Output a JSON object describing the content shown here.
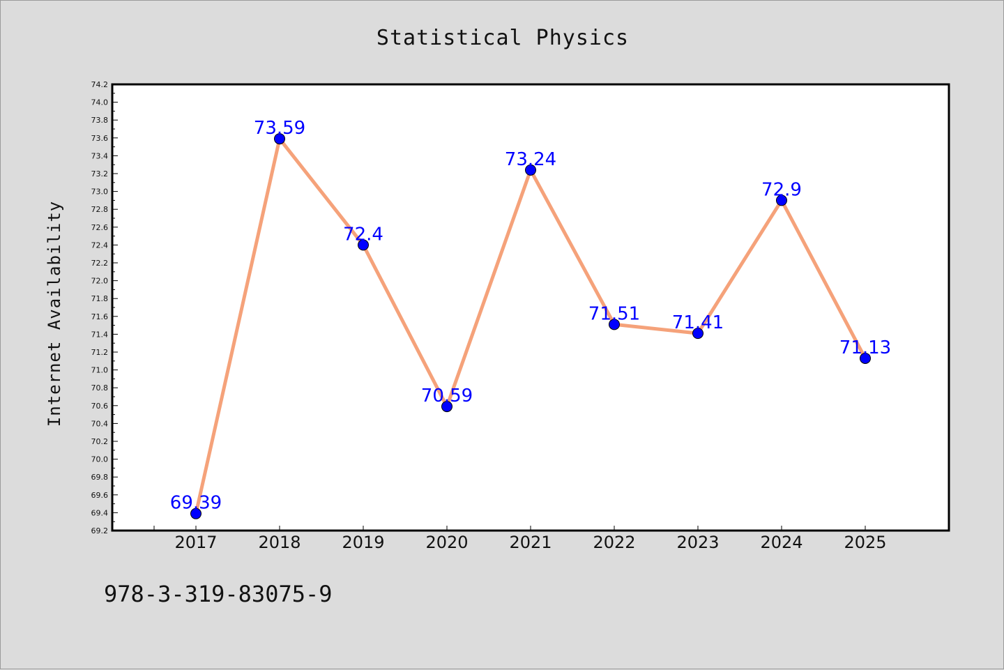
{
  "chart_data": {
    "type": "line",
    "title": "Statistical Physics",
    "xlabel": "",
    "ylabel": "Internet Availability",
    "categories": [
      "2017",
      "2018",
      "2019",
      "2020",
      "2021",
      "2022",
      "2023",
      "2024",
      "2025"
    ],
    "series": [
      {
        "values": [
          69.39,
          73.59,
          72.4,
          70.59,
          73.24,
          71.51,
          71.41,
          72.9,
          71.13
        ],
        "data_labels": [
          "69.39",
          "73.59",
          "72.4",
          "70.59",
          "73.24",
          "71.51",
          "71.41",
          "72.9",
          "71.13"
        ]
      }
    ],
    "ylim": [
      69.2,
      74.2
    ],
    "y_ticks": [
      "69.2",
      "69.4",
      "69.6",
      "69.8",
      "70.0",
      "70.2",
      "70.4",
      "70.6",
      "70.8",
      "71.0",
      "71.2",
      "71.4",
      "71.6",
      "71.8",
      "72.0",
      "72.2",
      "72.4",
      "72.6",
      "72.8",
      "73.0",
      "73.2",
      "73.4",
      "73.6",
      "73.8",
      "74.0",
      "74.2"
    ],
    "grid": false,
    "legend": "none"
  },
  "colors": {
    "line": "#f5a27a",
    "marker": "#0000ff",
    "data_label": "#0000ff",
    "plot_background": "#ffffff",
    "page_background": "#dcdcdc"
  },
  "footer": {
    "code": "978-3-319-83075-9"
  }
}
